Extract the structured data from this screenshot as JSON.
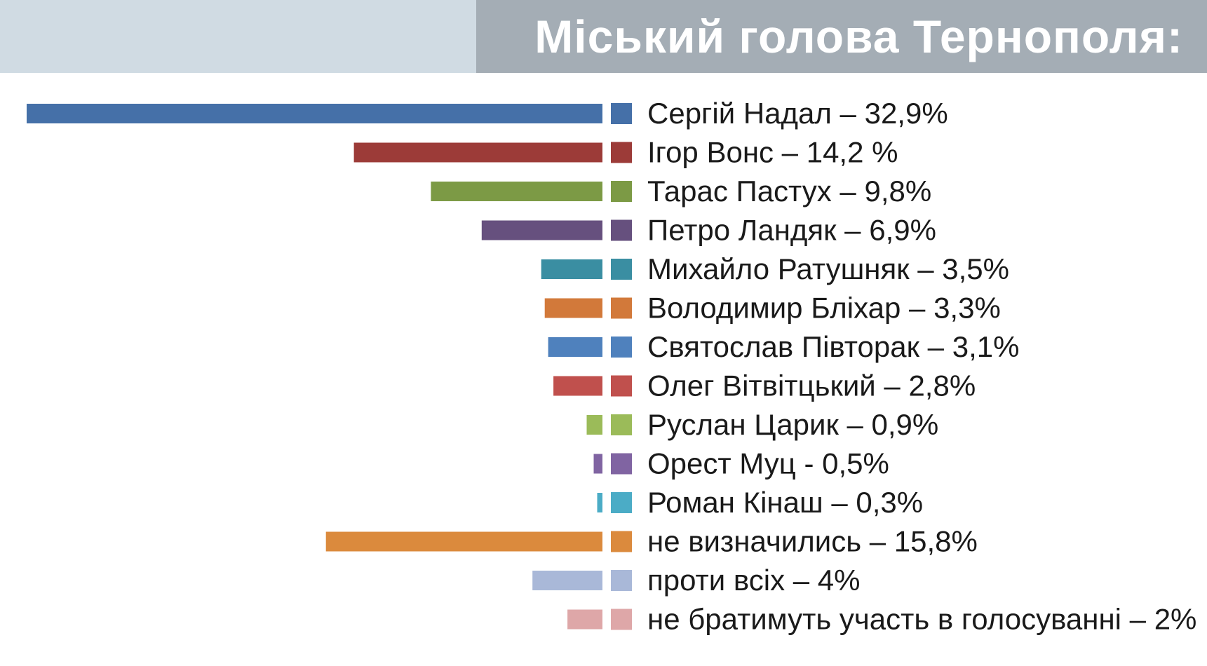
{
  "chart_data": {
    "type": "bar",
    "orientation": "horizontal",
    "title": "Міський голова Тернополя:",
    "categories": [
      "Сергій Надал – 32,9%",
      "Ігор Вонс – 14,2 %",
      "Тарас Пастух – 9,8%",
      "Петро Ландяк – 6,9%",
      "Михайло Ратушняк – 3,5%",
      "Володимир Бліхар – 3,3%",
      "Святослав Півторак – 3,1%",
      "Олег Вітвітцький – 2,8%",
      "Руслан Царик – 0,9%",
      "Орест Муц - 0,5%",
      "Роман Кінаш – 0,3%",
      "не визначились – 15,8%",
      "проти всіх – 4%",
      "не братимуть участь в голосуванні – 2%"
    ],
    "values": [
      32.9,
      14.2,
      9.8,
      6.9,
      3.5,
      3.3,
      3.1,
      2.8,
      0.9,
      0.5,
      0.3,
      15.8,
      4,
      2
    ],
    "colors": [
      "#4570a8",
      "#9c3b38",
      "#7c9a45",
      "#66507e",
      "#3a8ea2",
      "#d2793a",
      "#4f81bd",
      "#c0504d",
      "#9bbb59",
      "#8064a2",
      "#4bacc6",
      "#db8a3d",
      "#a9b8d8",
      "#dea7a8"
    ],
    "xlim": [
      0,
      32.9
    ],
    "grid": false,
    "legend": "none"
  }
}
